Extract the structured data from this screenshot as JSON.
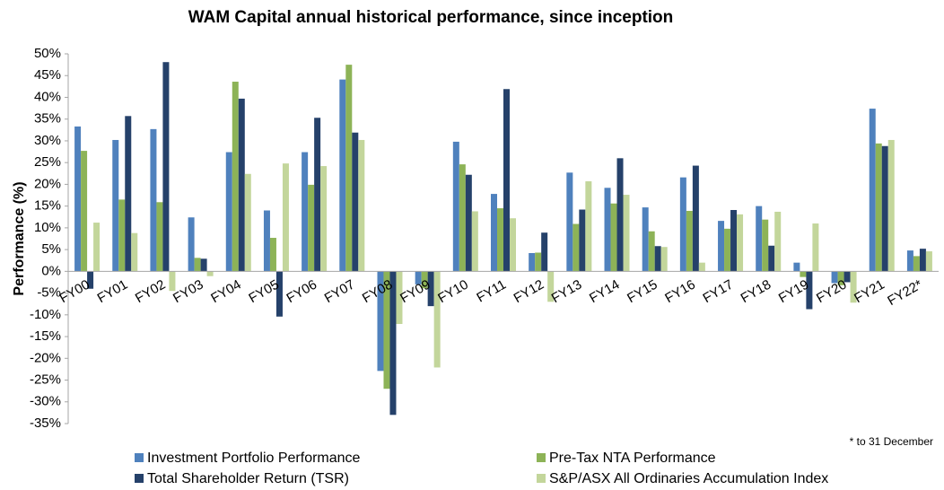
{
  "chart_data": {
    "type": "bar",
    "title": "WAM Capital annual historical performance, since inception",
    "y_label": "Performance (%)",
    "note": "* to 31 December",
    "categories": [
      "FY00",
      "FY01",
      "FY02",
      "FY03",
      "FY04",
      "FY05",
      "FY06",
      "FY07",
      "FY08",
      "FY09",
      "FY10",
      "FY11",
      "FY12",
      "FY13",
      "FY14",
      "FY15",
      "FY16",
      "FY17",
      "FY18",
      "FY19",
      "FY20",
      "FY21",
      "FY22*"
    ],
    "series": [
      {
        "name": "Investment Portfolio Performance",
        "color": "#4f81bd",
        "values": [
          33.3,
          30.2,
          32.7,
          12.4,
          27.4,
          14.0,
          27.4,
          44.1,
          -22.9,
          -3.0,
          29.8,
          17.8,
          4.2,
          22.7,
          19.2,
          14.7,
          21.6,
          11.6,
          15.0,
          2.0,
          -2.7,
          37.4,
          4.8
        ]
      },
      {
        "name": "Pre-Tax NTA Performance",
        "color": "#8db357",
        "values": [
          27.7,
          16.5,
          15.9,
          3.1,
          43.6,
          7.7,
          19.9,
          47.5,
          -27.0,
          -3.9,
          24.6,
          14.5,
          4.3,
          10.9,
          15.6,
          9.2,
          13.9,
          9.8,
          11.9,
          -1.3,
          -3.2,
          29.4,
          3.5
        ]
      },
      {
        "name": "Total Shareholder Return (TSR)",
        "color": "#25416a",
        "values": [
          -4.0,
          35.7,
          48.1,
          2.9,
          39.7,
          -10.4,
          35.3,
          31.9,
          -33.0,
          -8.0,
          22.2,
          41.9,
          8.9,
          14.2,
          26.0,
          5.8,
          24.3,
          14.1,
          5.9,
          -8.7,
          -2.5,
          28.8,
          5.2
        ]
      },
      {
        "name": "S&P/ASX All Ordinaries Accumulation Index",
        "color": "#c3d69b",
        "values": [
          11.2,
          8.8,
          -4.5,
          -1.1,
          22.4,
          24.8,
          24.2,
          30.2,
          -12.1,
          -22.1,
          13.8,
          12.2,
          -7.0,
          20.7,
          17.6,
          5.6,
          2.0,
          13.1,
          13.7,
          11.0,
          -7.2,
          30.2,
          4.6
        ]
      }
    ],
    "ylim": [
      -35,
      50
    ],
    "yticks": [
      {
        "value": -35,
        "label": "-35%"
      },
      {
        "value": -30,
        "label": "-30%"
      },
      {
        "value": -25,
        "label": "-25%"
      },
      {
        "value": -20,
        "label": "-20%"
      },
      {
        "value": -15,
        "label": "-15%"
      },
      {
        "value": -10,
        "label": "-10%"
      },
      {
        "value": -5,
        "label": "-5%"
      },
      {
        "value": 0,
        "label": "0%"
      },
      {
        "value": 5,
        "label": "5%"
      },
      {
        "value": 10,
        "label": "10%"
      },
      {
        "value": 15,
        "label": "15%"
      },
      {
        "value": 20,
        "label": "20%"
      },
      {
        "value": 25,
        "label": "25%"
      },
      {
        "value": 30,
        "label": "30%"
      },
      {
        "value": 35,
        "label": "35%"
      },
      {
        "value": 40,
        "label": "40%"
      },
      {
        "value": 45,
        "label": "45%"
      },
      {
        "value": 50,
        "label": "50%"
      }
    ],
    "grid": false
  }
}
